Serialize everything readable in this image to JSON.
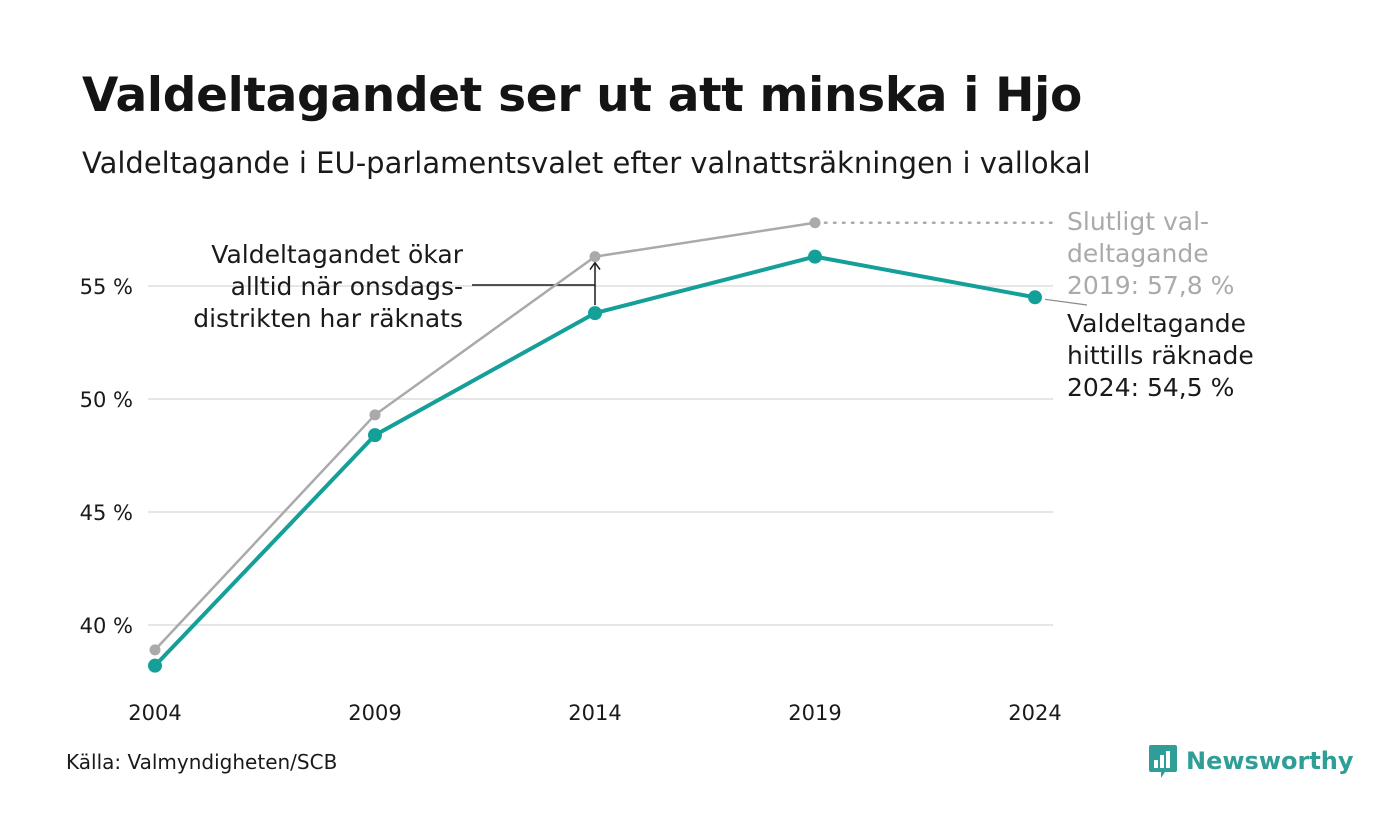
{
  "title": "Valdeltagandet ser ut att minska i Hjo",
  "subtitle": "Valdeltagande i EU-parlamentsvalet efter valnattsräkningen i vallokal",
  "source": "Källa: Valmyndigheten/SCB",
  "brand": {
    "name": "Newsworthy",
    "icon": "bar-chart-bubble-icon"
  },
  "colors": {
    "teal": "#14a098",
    "grey": "#aaaaaa",
    "grid": "#e6e6e6",
    "brand": "#2e9e96"
  },
  "chart_data": {
    "type": "line",
    "x": [
      2004,
      2009,
      2014,
      2019,
      2024
    ],
    "y_ticks": [
      40,
      45,
      50,
      55
    ],
    "y_tick_labels": [
      "40 %",
      "45 %",
      "50 %",
      "55 %"
    ],
    "x_tick_labels": [
      "2004",
      "2009",
      "2014",
      "2019",
      "2024"
    ],
    "grid": true,
    "series": [
      {
        "key": "final",
        "color": "#aaaaaa",
        "values": [
          38.9,
          49.3,
          56.3,
          57.8,
          null
        ]
      },
      {
        "key": "election_night",
        "color": "#14a098",
        "values": [
          38.2,
          48.4,
          53.8,
          56.3,
          54.5
        ]
      }
    ],
    "annotations": {
      "wednesday": [
        "Valdeltagandet ökar",
        "alltid när onsdags-",
        "distrikten har räknats"
      ],
      "final_2019": [
        "Slutligt val-",
        "deltagande",
        "2019: 57,8 %"
      ],
      "current_2024": [
        "Valdeltagande",
        "hittills räknade",
        "2024: 54,5 %"
      ]
    }
  }
}
